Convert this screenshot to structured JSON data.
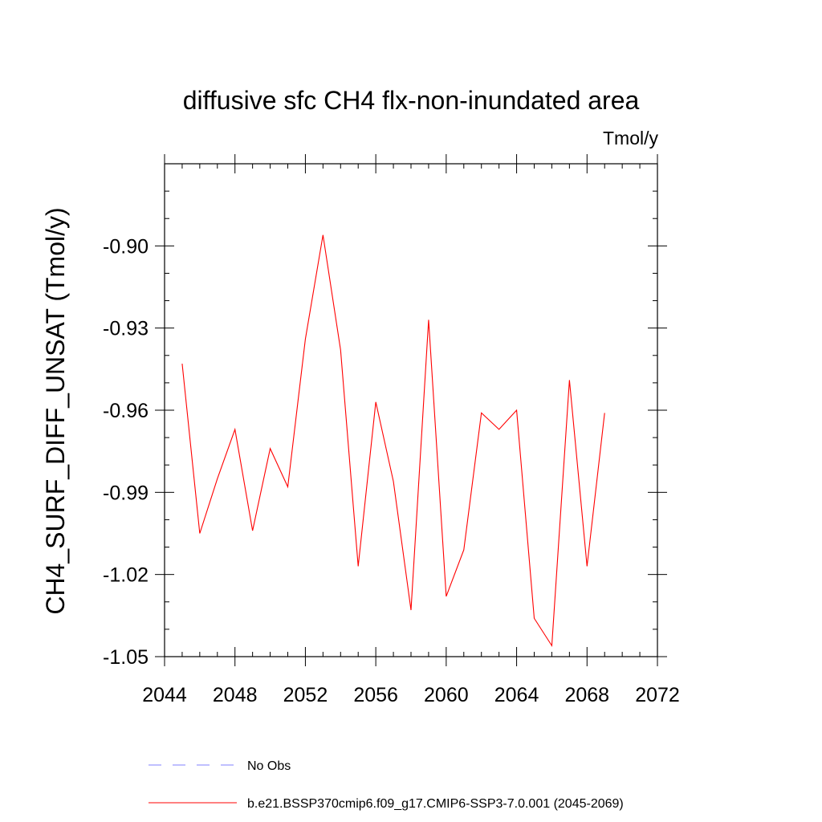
{
  "chart_data": {
    "type": "line",
    "title": "diffusive sfc CH4 flx-non-inundated area",
    "units_label": "Tmol/y",
    "ylabel": "CH4_SURF_DIFF_UNSAT  (Tmol/y)",
    "xlabel": "",
    "xlim": [
      2044,
      2072
    ],
    "ylim": [
      -1.05,
      -0.87
    ],
    "x_ticks": [
      2044,
      2048,
      2052,
      2056,
      2060,
      2064,
      2068,
      2072
    ],
    "x_tick_labels": [
      "2044",
      "2048",
      "2052",
      "2056",
      "2060",
      "2064",
      "2068",
      "2072"
    ],
    "y_ticks": [
      -1.05,
      -1.02,
      -0.99,
      -0.96,
      -0.93,
      -0.9
    ],
    "y_tick_labels": [
      "-1.05",
      "-1.02",
      "-0.99",
      "-0.96",
      "-0.93",
      "-0.90"
    ],
    "grid": false,
    "legend_position": "bottom",
    "series": [
      {
        "name": "b.e21.BSSP370cmip6.f09_g17.CMIP6-SSP3-7.0.001 (2045-2069)",
        "color": "#ff0000",
        "dash": "solid",
        "x": [
          2045,
          2046,
          2047,
          2048,
          2049,
          2050,
          2051,
          2052,
          2053,
          2054,
          2055,
          2056,
          2057,
          2058,
          2059,
          2060,
          2061,
          2062,
          2063,
          2064,
          2065,
          2066,
          2067,
          2068,
          2069
        ],
        "values": [
          -0.943,
          -1.005,
          -0.985,
          -0.967,
          -1.004,
          -0.974,
          -0.988,
          -0.934,
          -0.896,
          -0.938,
          -1.017,
          -0.957,
          -0.986,
          -1.033,
          -0.927,
          -1.028,
          -1.011,
          -0.961,
          -0.967,
          -0.96,
          -1.036,
          -1.046,
          -0.949,
          -1.017,
          -0.961
        ]
      }
    ],
    "legend": [
      {
        "label": "No Obs",
        "color": "#8080ff",
        "dash": "dashed"
      },
      {
        "label": "b.e21.BSSP370cmip6.f09_g17.CMIP6-SSP3-7.0.001 (2045-2069)",
        "color": "#ff0000",
        "dash": "solid"
      }
    ]
  }
}
